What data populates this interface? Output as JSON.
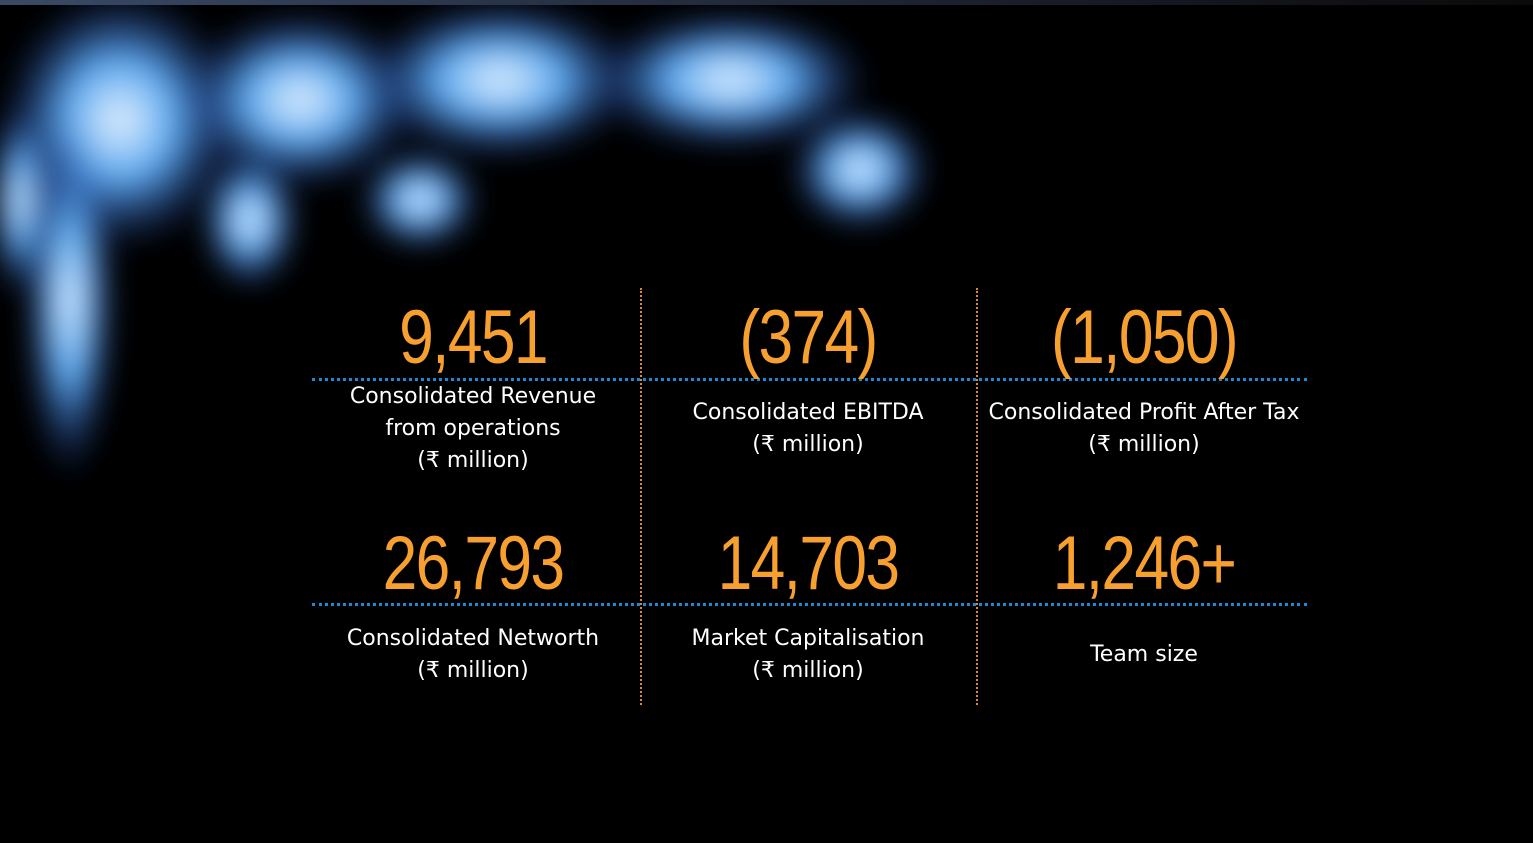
{
  "stats": [
    {
      "value": "9,451",
      "label": [
        "Consolidated Revenue",
        "from operations",
        "(₹ million)"
      ]
    },
    {
      "value": "(374)",
      "label": [
        "Consolidated EBITDA",
        "(₹ million)"
      ]
    },
    {
      "value": "(1,050)",
      "label": [
        "Consolidated Profit After Tax",
        "(₹ million)"
      ]
    },
    {
      "value": "26,793",
      "label": [
        "Consolidated Networth",
        "(₹ million)"
      ]
    },
    {
      "value": "14,703",
      "label": [
        "Market Capitalisation",
        "(₹ million)"
      ]
    },
    {
      "value": "1,246+",
      "label": [
        "Team size"
      ]
    }
  ]
}
